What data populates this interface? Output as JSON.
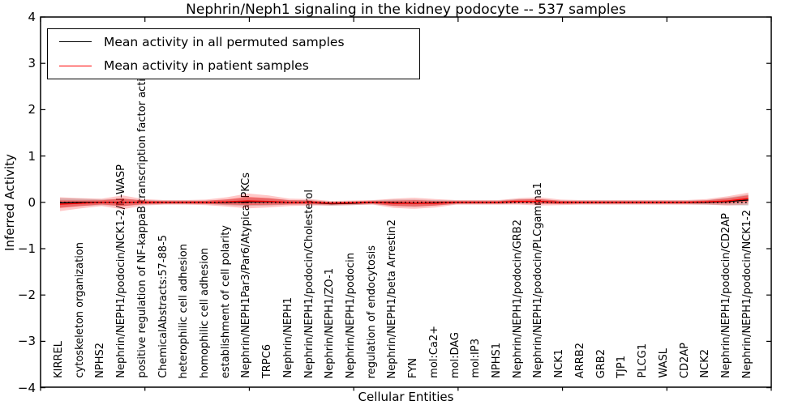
{
  "title": "Nephrin/Neph1 signaling in the kidney podocyte -- 537 samples",
  "legend": {
    "items": [
      {
        "label": "Mean activity in all permuted samples",
        "color": "#000000"
      },
      {
        "label": "Mean activity in patient samples",
        "color": "#ff0000"
      }
    ]
  },
  "chart_data": {
    "type": "line",
    "title": "Nephrin/Neph1 signaling in the kidney podocyte -- 537 samples",
    "xlabel": "Cellular Entities",
    "ylabel": "Inferred Activity",
    "ylim": [
      -4,
      4
    ],
    "yticks": [
      4,
      3,
      2,
      1,
      0,
      -1,
      -2,
      -3,
      -4
    ],
    "ytick_labels": [
      "4",
      "3",
      "2",
      "1",
      "0",
      "−1",
      "−2",
      "−3",
      "−4"
    ],
    "x_major_ticks": 8,
    "grid": false,
    "legend_position": "upper left",
    "zero_line": {
      "value": 0,
      "style": "dotted",
      "color": "#000000"
    },
    "colors": {
      "permuted_line": "#000000",
      "permuted_band": "rgba(128,128,128,0.32)",
      "patient_line": "#ff0000",
      "patient_band_outer": "rgba(255,0,0,0.22)",
      "patient_band_inner": "rgba(255,0,0,0.38)"
    },
    "categories": [
      "KIRREL",
      "cytoskeleton organization",
      "NPHS2",
      "Nephrin/NEPH1/podocin/NCK1-2/N-WASP",
      "positive regulation of NF-kappaB transcription factor activity",
      "ChemicalAbstracts:57-88-5",
      "heterophilic cell adhesion",
      "homophilic cell adhesion",
      "establishment of cell polarity",
      "Nephrin/NEPH1Par3/Par6/Atypical PKCs",
      "TRPC6",
      "Nephrin/NEPH1",
      "Nephrin/NEPH1/podocin/Cholesterol",
      "Nephrin/NEPH1/ZO-1",
      "Nephrin/NEPH1/podocin",
      "regulation of endocytosis",
      "Nephrin/NEPH1/beta Arrestin2",
      "FYN",
      "mol:Ca2+",
      "mol:DAG",
      "mol:IP3",
      "NPHS1",
      "Nephrin/NEPH1/podocin/GRB2",
      "Nephrin/NEPH1/podocin/PLCgamma1",
      "NCK1",
      "ARRB2",
      "GRB2",
      "TJP1",
      "PLCG1",
      "WASL",
      "CD2AP",
      "NCK2",
      "Nephrin/NEPH1/podocin/CD2AP",
      "Nephrin/NEPH1/podocin/NCK1-2"
    ],
    "series": [
      {
        "name": "Mean activity in all permuted samples",
        "mean": [
          -0.01,
          0,
          0,
          0,
          0,
          0,
          0,
          0,
          0,
          0.01,
          0.01,
          0,
          0,
          -0.03,
          -0.02,
          0,
          -0.01,
          -0.02,
          -0.01,
          0,
          0,
          0,
          0.02,
          0.02,
          0,
          0,
          0,
          0,
          0,
          0,
          0,
          0,
          0.02,
          0.05
        ],
        "std": [
          0.1,
          0.08,
          0.06,
          0.08,
          0.05,
          0.04,
          0.04,
          0.04,
          0.06,
          0.09,
          0.08,
          0.05,
          0.05,
          0.04,
          0.04,
          0.04,
          0.07,
          0.08,
          0.06,
          0.04,
          0.04,
          0.04,
          0.05,
          0.05,
          0.04,
          0.04,
          0.04,
          0.04,
          0.04,
          0.04,
          0.04,
          0.05,
          0.08,
          0.12
        ]
      },
      {
        "name": "Mean activity in patient samples",
        "mean": [
          -0.04,
          -0.02,
          0,
          0,
          0,
          0,
          0,
          0,
          0.01,
          0.03,
          0.02,
          0,
          0,
          -0.02,
          -0.01,
          0,
          -0.02,
          -0.02,
          -0.02,
          0,
          0,
          0,
          0.02,
          0.02,
          0,
          0,
          0,
          0,
          0,
          0,
          0,
          0.01,
          0.03,
          0.08
        ],
        "std": [
          0.15,
          0.11,
          0.08,
          0.15,
          0.07,
          0.05,
          0.05,
          0.06,
          0.1,
          0.16,
          0.13,
          0.08,
          0.07,
          0.05,
          0.05,
          0.05,
          0.1,
          0.12,
          0.09,
          0.05,
          0.05,
          0.05,
          0.07,
          0.09,
          0.06,
          0.05,
          0.05,
          0.05,
          0.05,
          0.05,
          0.05,
          0.06,
          0.1,
          0.13
        ]
      }
    ]
  }
}
